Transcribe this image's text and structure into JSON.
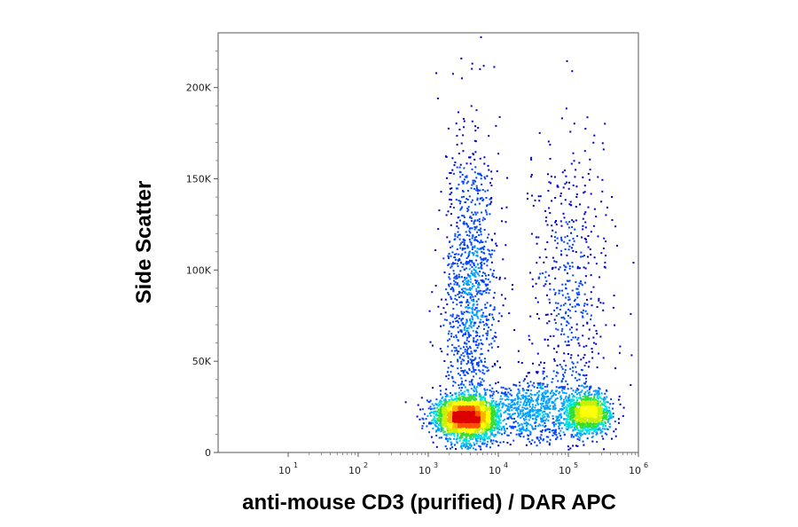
{
  "chart_data": {
    "type": "scatter",
    "title": "",
    "xlabel": "anti-mouse CD3 (purified) / DAR APC",
    "ylabel": "Side Scatter",
    "x_scale": "log",
    "xlim": [
      1,
      1000000
    ],
    "ylim": [
      0,
      230000
    ],
    "x_ticks": [
      {
        "base": "10",
        "exp": "1"
      },
      {
        "base": "10",
        "exp": "2"
      },
      {
        "base": "10",
        "exp": "3"
      },
      {
        "base": "10",
        "exp": "4"
      },
      {
        "base": "10",
        "exp": "5"
      },
      {
        "base": "10",
        "exp": "6"
      }
    ],
    "y_ticks": [
      {
        "value": 0,
        "label": "0"
      },
      {
        "value": 50000,
        "label": "50K"
      },
      {
        "value": 100000,
        "label": "100K"
      },
      {
        "value": 150000,
        "label": "150K"
      },
      {
        "value": 200000,
        "label": "200K"
      }
    ],
    "grid": false,
    "density_colormap": [
      "#0000cc",
      "#0044ff",
      "#00a0ff",
      "#00e0e0",
      "#30e030",
      "#c8f000",
      "#ffff00",
      "#ffb000",
      "#ff5000",
      "#dd0000"
    ],
    "populations": [
      {
        "center_x": 3500,
        "center_y": 20000,
        "spread_log_x": 0.22,
        "spread_y": 5500,
        "weight": 0.46
      },
      {
        "center_x": 180000,
        "center_y": 22000,
        "spread_log_x": 0.17,
        "spread_y": 6000,
        "weight": 0.18
      },
      {
        "center_x": 4000,
        "center_y": 85000,
        "spread_log_x": 0.2,
        "spread_y": 45000,
        "weight": 0.18
      },
      {
        "center_x": 30000,
        "center_y": 25000,
        "spread_log_x": 0.3,
        "spread_y": 9000,
        "weight": 0.1
      },
      {
        "center_x": 100000,
        "center_y": 90000,
        "spread_log_x": 0.3,
        "spread_y": 40000,
        "weight": 0.08
      }
    ]
  }
}
